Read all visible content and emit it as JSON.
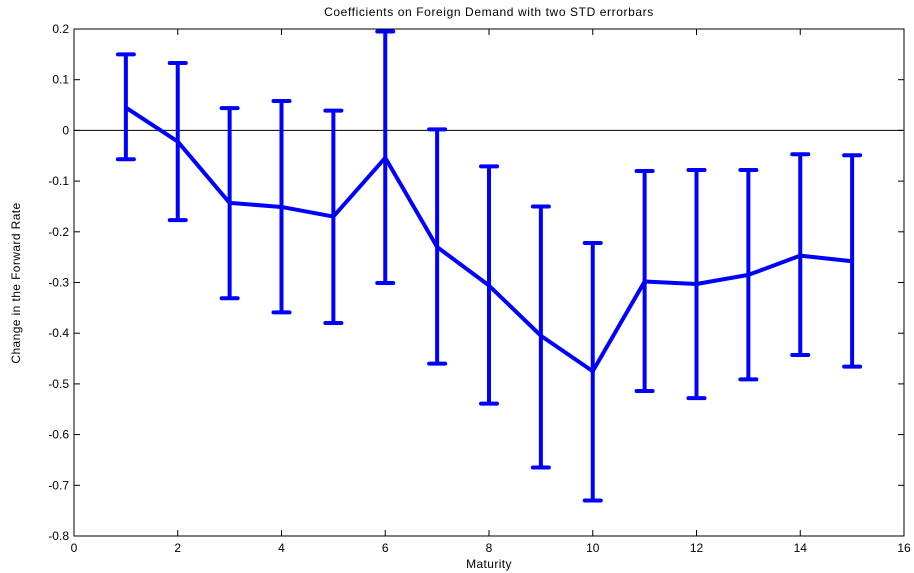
{
  "chart_data": {
    "type": "line",
    "title": "Coefficients on Foreign Demand with two STD errorbars",
    "xlabel": "Maturity",
    "ylabel": "Change in the Forward Rate",
    "xlim": [
      0,
      16
    ],
    "ylim": [
      -0.8,
      0.2
    ],
    "xticks": [
      0,
      2,
      4,
      6,
      8,
      10,
      12,
      14,
      16
    ],
    "yticks": [
      0.2,
      0.1,
      0,
      -0.1,
      -0.2,
      -0.3,
      -0.4,
      -0.5,
      -0.6,
      -0.7,
      -0.8
    ],
    "xtick_labels": [
      "0",
      "2",
      "4",
      "6",
      "8",
      "10",
      "12",
      "14",
      "16"
    ],
    "ytick_labels": [
      "0.2",
      "0.1",
      "0",
      "-0.1",
      "-0.2",
      "-0.3",
      "-0.4",
      "-0.5",
      "-0.6",
      "-0.7",
      "-0.8"
    ],
    "zero_line": true,
    "grid": false,
    "line_color": "#0000ff",
    "series": [
      {
        "x": [
          1,
          2,
          3,
          4,
          5,
          6,
          7,
          8,
          9,
          10,
          11,
          12,
          13,
          14,
          15
        ],
        "values": [
          0.045,
          -0.022,
          -0.143,
          -0.151,
          -0.17,
          -0.054,
          -0.23,
          -0.306,
          -0.405,
          -0.475,
          -0.298,
          -0.303,
          -0.285,
          -0.247,
          -0.258
        ],
        "upper": [
          0.15,
          0.133,
          0.044,
          0.058,
          0.039,
          0.195,
          0.002,
          -0.071,
          -0.15,
          -0.222,
          -0.08,
          -0.078,
          -0.078,
          -0.047,
          -0.049
        ],
        "lower": [
          -0.057,
          -0.177,
          -0.331,
          -0.359,
          -0.38,
          -0.301,
          -0.46,
          -0.539,
          -0.665,
          -0.73,
          -0.514,
          -0.528,
          -0.491,
          -0.443,
          -0.466
        ]
      }
    ]
  }
}
